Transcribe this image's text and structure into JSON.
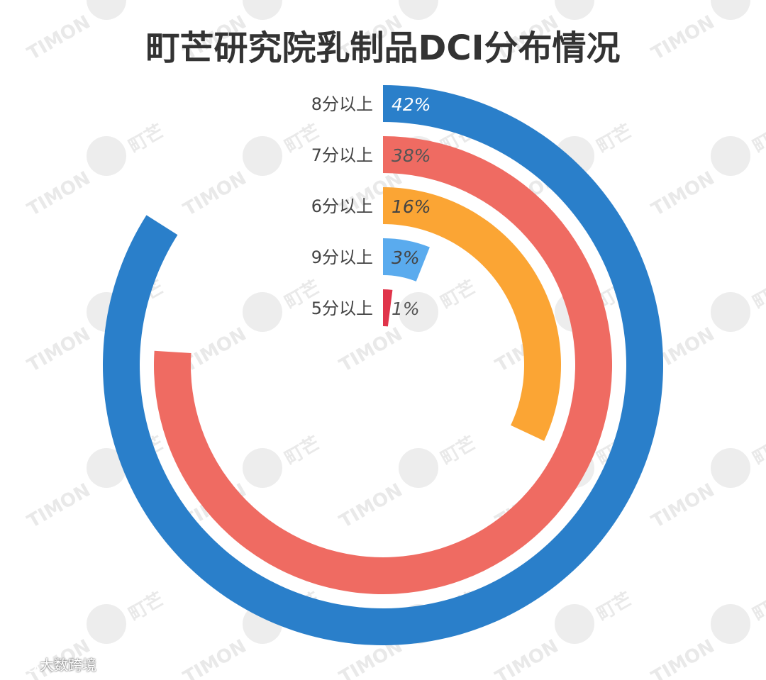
{
  "title": "町芒研究院乳制品DCI分布情况",
  "watermark": {
    "brand_cn": "町芒",
    "brand_en": "TIMON"
  },
  "corner_mark": {
    "text": "大数跨境",
    "icon": "weibo-like-icon"
  },
  "chart_data": {
    "type": "radial-bar",
    "title": "町芒研究院乳制品DCI分布情况",
    "max_value": 50,
    "categories": [
      "8分以上",
      "7分以上",
      "6分以上",
      "9分以上",
      "5分以上"
    ],
    "values": [
      42,
      38,
      16,
      3,
      1
    ],
    "labels": [
      "42%",
      "38%",
      "16%",
      "3%",
      "1%"
    ],
    "colors": [
      "#2a7fca",
      "#ef6b62",
      "#fba534",
      "#5aabee",
      "#e0344a"
    ],
    "label_colors": [
      "#ffffff",
      "#555555",
      "#444444",
      "#444444",
      "#555555"
    ],
    "start_angle": "12 o'clock",
    "direction": "clockwise",
    "order": "outer to inner"
  }
}
